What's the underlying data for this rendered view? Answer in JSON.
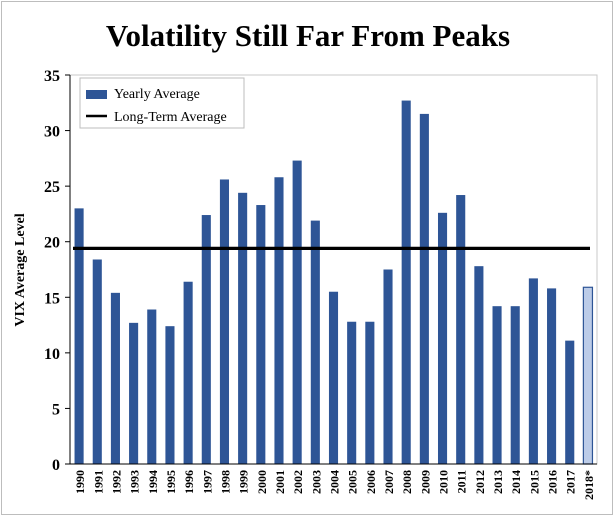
{
  "chart_data": {
    "type": "bar",
    "title": "Volatility Still Far From Peaks",
    "xlabel": "",
    "ylabel": "VIX Average Level",
    "ylim": [
      0,
      35
    ],
    "yticks": [
      0,
      5,
      10,
      15,
      20,
      25,
      30,
      35
    ],
    "categories": [
      "1990",
      "1991",
      "1992",
      "1993",
      "1994",
      "1995",
      "1996",
      "1997",
      "1998",
      "1999",
      "2000",
      "2001",
      "2002",
      "2003",
      "2004",
      "2005",
      "2006",
      "2007",
      "2008",
      "2009",
      "2010",
      "2011",
      "2012",
      "2013",
      "2014",
      "2015",
      "2016",
      "2017",
      "2018*"
    ],
    "series": [
      {
        "name": "Yearly Average",
        "values": [
          23.0,
          18.4,
          15.4,
          12.7,
          13.9,
          12.4,
          16.4,
          22.4,
          25.6,
          24.4,
          23.3,
          25.8,
          27.3,
          21.9,
          15.5,
          12.8,
          12.8,
          17.5,
          32.7,
          31.5,
          22.6,
          24.2,
          17.8,
          14.2,
          14.2,
          16.7,
          15.8,
          11.1,
          15.9
        ],
        "color": "#2e5596",
        "highlight_last": true,
        "highlight_color": "#bccce8"
      }
    ],
    "reference_line": {
      "name": "Long-Term Average",
      "value": 19.4,
      "color": "#000000"
    },
    "legend": {
      "position": "top-left",
      "entries": [
        "Yearly Average",
        "Long-Term Average"
      ]
    }
  }
}
